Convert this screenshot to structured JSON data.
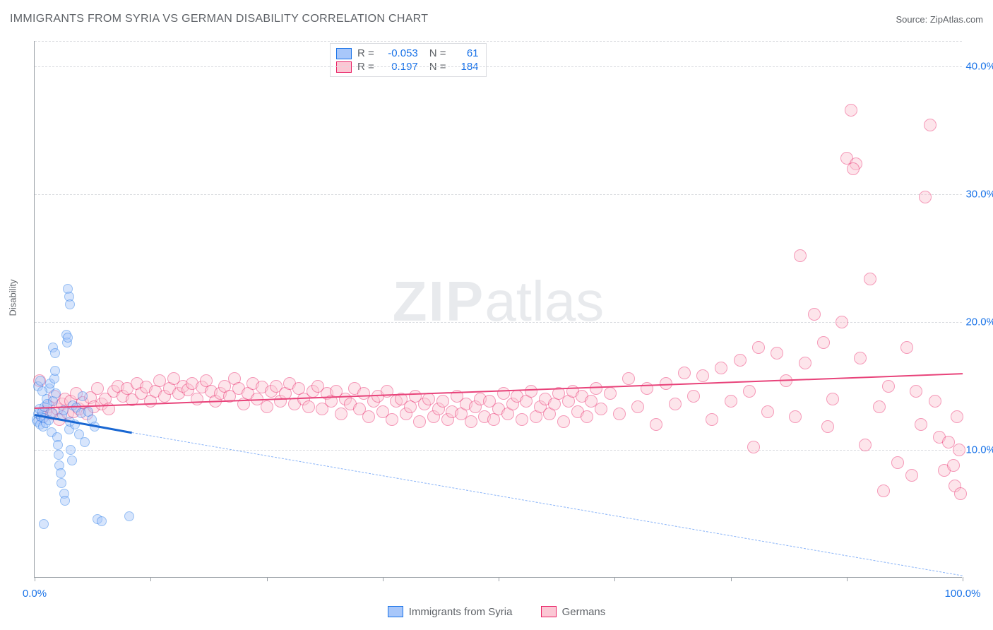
{
  "title": "IMMIGRANTS FROM SYRIA VS GERMAN DISABILITY CORRELATION CHART",
  "source_label": "Source: ZipAtlas.com",
  "watermark": {
    "bold": "ZIP",
    "rest": "atlas"
  },
  "y_axis_title": "Disability",
  "chart": {
    "type": "scatter",
    "xlim": [
      0,
      100
    ],
    "ylim": [
      0,
      42
    ],
    "x_ticks": [
      0,
      12.5,
      25,
      37.5,
      50,
      62.5,
      75,
      87.5,
      100
    ],
    "x_tick_labels": {
      "0": "0.0%",
      "100": "100.0%"
    },
    "y_gridlines": [
      10,
      20,
      30,
      40
    ],
    "y_tick_labels": {
      "10": "10.0%",
      "20": "20.0%",
      "30": "30.0%",
      "40": "40.0%"
    },
    "background_color": "#ffffff",
    "grid_color": "#dadce0",
    "axis_color": "#9aa0a6",
    "label_color": "#1a73e8",
    "title_color": "#5f6368",
    "title_fontsize": 16,
    "tick_fontsize": 15,
    "marker_radius_blue": 7,
    "marker_radius_pink": 9,
    "marker_opacity": 0.45
  },
  "series": {
    "blue": {
      "label": "Immigrants from Syria",
      "R": "-0.053",
      "N": "61",
      "fill": "#a8c7fa",
      "stroke": "#1a73e8",
      "points": [
        [
          0.2,
          12.4
        ],
        [
          0.3,
          12.2
        ],
        [
          0.4,
          12.8
        ],
        [
          0.5,
          13.2
        ],
        [
          0.6,
          12.0
        ],
        [
          0.7,
          12.6
        ],
        [
          0.8,
          13.0
        ],
        [
          0.9,
          11.8
        ],
        [
          1.0,
          12.5
        ],
        [
          1.1,
          13.4
        ],
        [
          1.2,
          12.1
        ],
        [
          1.3,
          14.0
        ],
        [
          1.4,
          13.6
        ],
        [
          1.5,
          12.3
        ],
        [
          1.6,
          14.8
        ],
        [
          1.7,
          15.2
        ],
        [
          1.8,
          11.4
        ],
        [
          1.9,
          12.9
        ],
        [
          2.0,
          13.8
        ],
        [
          2.1,
          15.6
        ],
        [
          2.2,
          16.2
        ],
        [
          2.3,
          14.4
        ],
        [
          2.4,
          11.0
        ],
        [
          2.5,
          10.4
        ],
        [
          2.6,
          9.6
        ],
        [
          2.7,
          8.8
        ],
        [
          2.8,
          8.2
        ],
        [
          2.9,
          7.4
        ],
        [
          3.0,
          12.7
        ],
        [
          3.1,
          13.1
        ],
        [
          3.2,
          6.6
        ],
        [
          3.3,
          6.0
        ],
        [
          3.4,
          19.0
        ],
        [
          3.5,
          18.4
        ],
        [
          3.6,
          18.8
        ],
        [
          3.7,
          11.6
        ],
        [
          3.8,
          12.2
        ],
        [
          3.9,
          10.0
        ],
        [
          4.0,
          9.2
        ],
        [
          4.1,
          13.5
        ],
        [
          4.3,
          12.0
        ],
        [
          4.5,
          13.3
        ],
        [
          4.8,
          11.2
        ],
        [
          5.0,
          12.9
        ],
        [
          5.2,
          14.2
        ],
        [
          5.4,
          10.6
        ],
        [
          5.8,
          13.0
        ],
        [
          6.2,
          12.4
        ],
        [
          6.5,
          11.8
        ],
        [
          6.8,
          4.6
        ],
        [
          7.2,
          4.4
        ],
        [
          3.6,
          22.6
        ],
        [
          3.7,
          22.0
        ],
        [
          3.8,
          21.4
        ],
        [
          2.0,
          18.0
        ],
        [
          2.2,
          17.6
        ],
        [
          0.4,
          15.0
        ],
        [
          0.6,
          15.4
        ],
        [
          0.8,
          14.6
        ],
        [
          10.2,
          4.8
        ],
        [
          1.0,
          4.2
        ]
      ],
      "trend": {
        "x1": 0,
        "y1": 12.8,
        "x2": 10.5,
        "y2": 11.4,
        "color": "#1967d2",
        "width": 3
      },
      "trend_ext": {
        "x1": 10.5,
        "y1": 11.4,
        "x2": 100,
        "y2": 0.2,
        "color": "#8ab4f8",
        "width": 1.5,
        "dash": true
      }
    },
    "pink": {
      "label": "Germans",
      "R": "0.197",
      "N": "184",
      "fill": "#fbc7d4",
      "stroke": "#e91e63",
      "points": [
        [
          0.5,
          15.4
        ],
        [
          0.8,
          12.6
        ],
        [
          1.2,
          13.0
        ],
        [
          1.5,
          13.4
        ],
        [
          1.8,
          12.8
        ],
        [
          2.1,
          14.2
        ],
        [
          2.4,
          13.2
        ],
        [
          2.7,
          12.4
        ],
        [
          3.0,
          13.6
        ],
        [
          3.3,
          14.0
        ],
        [
          3.6,
          12.9
        ],
        [
          3.9,
          13.8
        ],
        [
          4.2,
          13.0
        ],
        [
          4.5,
          14.4
        ],
        [
          4.8,
          13.2
        ],
        [
          5.2,
          13.7
        ],
        [
          5.6,
          12.8
        ],
        [
          6.0,
          14.1
        ],
        [
          6.4,
          13.4
        ],
        [
          6.8,
          14.8
        ],
        [
          7.2,
          13.6
        ],
        [
          7.6,
          14.0
        ],
        [
          8.0,
          13.2
        ],
        [
          8.5,
          14.6
        ],
        [
          9.0,
          15.0
        ],
        [
          9.5,
          14.2
        ],
        [
          10.0,
          14.8
        ],
        [
          10.5,
          13.9
        ],
        [
          11.0,
          15.2
        ],
        [
          11.5,
          14.4
        ],
        [
          12.0,
          14.9
        ],
        [
          12.5,
          13.8
        ],
        [
          13.0,
          14.6
        ],
        [
          13.5,
          15.4
        ],
        [
          14.0,
          14.2
        ],
        [
          14.5,
          14.8
        ],
        [
          15.0,
          15.6
        ],
        [
          15.5,
          14.4
        ],
        [
          16.0,
          15.0
        ],
        [
          16.5,
          14.7
        ],
        [
          17.0,
          15.2
        ],
        [
          17.5,
          14.0
        ],
        [
          18.0,
          14.9
        ],
        [
          18.5,
          15.4
        ],
        [
          19.0,
          14.6
        ],
        [
          19.5,
          13.8
        ],
        [
          20.0,
          14.4
        ],
        [
          20.5,
          15.0
        ],
        [
          21.0,
          14.2
        ],
        [
          21.5,
          15.6
        ],
        [
          22.0,
          14.8
        ],
        [
          22.5,
          13.6
        ],
        [
          23.0,
          14.4
        ],
        [
          23.5,
          15.2
        ],
        [
          24.0,
          14.0
        ],
        [
          24.5,
          14.9
        ],
        [
          25.0,
          13.4
        ],
        [
          25.5,
          14.6
        ],
        [
          26.0,
          15.0
        ],
        [
          26.5,
          13.8
        ],
        [
          27.0,
          14.4
        ],
        [
          27.5,
          15.2
        ],
        [
          28.0,
          13.6
        ],
        [
          28.5,
          14.8
        ],
        [
          29.0,
          14.0
        ],
        [
          29.5,
          13.4
        ],
        [
          30.0,
          14.6
        ],
        [
          30.5,
          15.0
        ],
        [
          31.0,
          13.2
        ],
        [
          31.5,
          14.4
        ],
        [
          32.0,
          13.8
        ],
        [
          32.5,
          14.6
        ],
        [
          33.0,
          12.8
        ],
        [
          33.5,
          14.0
        ],
        [
          34.0,
          13.6
        ],
        [
          34.5,
          14.8
        ],
        [
          35.0,
          13.2
        ],
        [
          35.5,
          14.4
        ],
        [
          36.0,
          12.6
        ],
        [
          36.5,
          13.8
        ],
        [
          37.0,
          14.2
        ],
        [
          37.5,
          13.0
        ],
        [
          38.0,
          14.6
        ],
        [
          38.5,
          12.4
        ],
        [
          39.0,
          13.8
        ],
        [
          39.5,
          14.0
        ],
        [
          40.0,
          12.8
        ],
        [
          40.5,
          13.4
        ],
        [
          41.0,
          14.2
        ],
        [
          41.5,
          12.2
        ],
        [
          42.0,
          13.6
        ],
        [
          42.5,
          14.0
        ],
        [
          43.0,
          12.6
        ],
        [
          43.5,
          13.2
        ],
        [
          44.0,
          13.8
        ],
        [
          44.5,
          12.4
        ],
        [
          45.0,
          13.0
        ],
        [
          45.5,
          14.2
        ],
        [
          46.0,
          12.8
        ],
        [
          46.5,
          13.6
        ],
        [
          47.0,
          12.2
        ],
        [
          47.5,
          13.4
        ],
        [
          48.0,
          14.0
        ],
        [
          48.5,
          12.6
        ],
        [
          49.0,
          13.8
        ],
        [
          49.5,
          12.4
        ],
        [
          50.0,
          13.2
        ],
        [
          50.5,
          14.4
        ],
        [
          51.0,
          12.8
        ],
        [
          51.5,
          13.6
        ],
        [
          52.0,
          14.2
        ],
        [
          52.5,
          12.4
        ],
        [
          53.0,
          13.8
        ],
        [
          53.5,
          14.6
        ],
        [
          54.0,
          12.6
        ],
        [
          54.5,
          13.4
        ],
        [
          55.0,
          14.0
        ],
        [
          55.5,
          12.8
        ],
        [
          56.0,
          13.6
        ],
        [
          56.5,
          14.4
        ],
        [
          57.0,
          12.2
        ],
        [
          57.5,
          13.8
        ],
        [
          58.0,
          14.6
        ],
        [
          58.5,
          13.0
        ],
        [
          59.0,
          14.2
        ],
        [
          59.5,
          12.6
        ],
        [
          60.0,
          13.8
        ],
        [
          60.5,
          14.8
        ],
        [
          61.0,
          13.2
        ],
        [
          62.0,
          14.4
        ],
        [
          63.0,
          12.8
        ],
        [
          64.0,
          15.6
        ],
        [
          65.0,
          13.4
        ],
        [
          66.0,
          14.8
        ],
        [
          67.0,
          12.0
        ],
        [
          68.0,
          15.2
        ],
        [
          69.0,
          13.6
        ],
        [
          70.0,
          16.0
        ],
        [
          71.0,
          14.2
        ],
        [
          72.0,
          15.8
        ],
        [
          73.0,
          12.4
        ],
        [
          74.0,
          16.4
        ],
        [
          75.0,
          13.8
        ],
        [
          76.0,
          17.0
        ],
        [
          77.0,
          14.6
        ],
        [
          77.5,
          10.2
        ],
        [
          78.0,
          18.0
        ],
        [
          79.0,
          13.0
        ],
        [
          80.0,
          17.6
        ],
        [
          81.0,
          15.4
        ],
        [
          82.0,
          12.6
        ],
        [
          82.5,
          25.2
        ],
        [
          83.0,
          16.8
        ],
        [
          84.0,
          20.6
        ],
        [
          85.0,
          18.4
        ],
        [
          85.5,
          11.8
        ],
        [
          86.0,
          14.0
        ],
        [
          87.0,
          20.0
        ],
        [
          87.5,
          32.8
        ],
        [
          88.0,
          36.6
        ],
        [
          88.5,
          32.4
        ],
        [
          89.0,
          17.2
        ],
        [
          89.5,
          10.4
        ],
        [
          90.0,
          23.4
        ],
        [
          91.0,
          13.4
        ],
        [
          91.5,
          6.8
        ],
        [
          92.0,
          15.0
        ],
        [
          93.0,
          9.0
        ],
        [
          94.0,
          18.0
        ],
        [
          94.5,
          8.0
        ],
        [
          95.0,
          14.6
        ],
        [
          95.5,
          12.0
        ],
        [
          96.0,
          29.8
        ],
        [
          96.5,
          35.4
        ],
        [
          97.0,
          13.8
        ],
        [
          97.5,
          11.0
        ],
        [
          98.0,
          8.4
        ],
        [
          98.5,
          10.6
        ],
        [
          99.0,
          8.8
        ],
        [
          99.2,
          7.2
        ],
        [
          99.4,
          12.6
        ],
        [
          99.6,
          10.0
        ],
        [
          99.8,
          6.6
        ],
        [
          88.2,
          32.0
        ]
      ],
      "trend": {
        "x1": 0,
        "y1": 13.3,
        "x2": 100,
        "y2": 16.0,
        "color": "#e8437a",
        "width": 2.5
      }
    }
  },
  "legend_stat_label_R": "R =",
  "legend_stat_label_N": "N ="
}
